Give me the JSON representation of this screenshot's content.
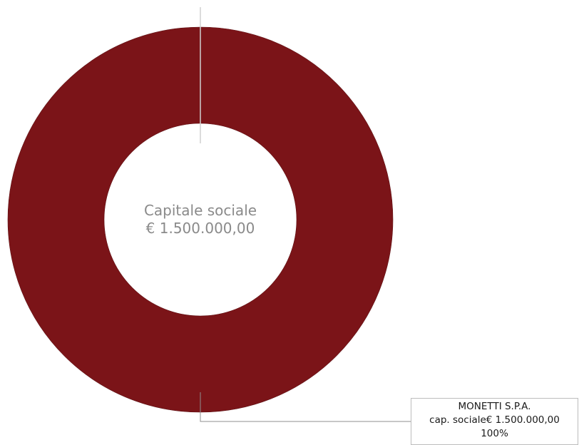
{
  "chart_data": {
    "type": "pie",
    "variant": "donut",
    "center_label": {
      "line1": "Capitale sociale",
      "line2": "€ 1.500.000,00"
    },
    "slices": [
      {
        "name": "MONETTI S.P.A.",
        "detail": "cap. sociale€ 1.500.000,00",
        "value": 1500000,
        "percent_label": "100%",
        "color": "#7b1418"
      }
    ],
    "legend": "none",
    "grid": false
  },
  "colors": {
    "slice": "#7b1418",
    "leader_line": "#b3b3b3",
    "center_text": "#8a8a8a"
  }
}
